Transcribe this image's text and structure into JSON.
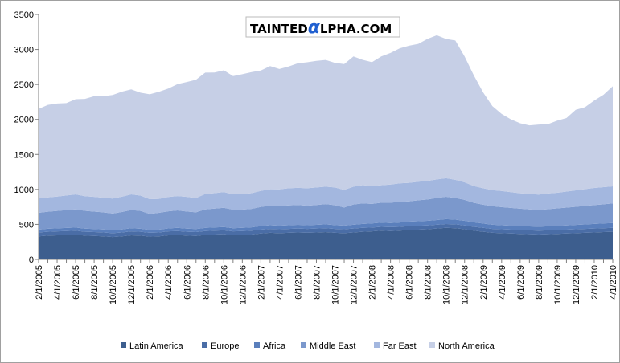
{
  "chart_data": {
    "type": "area",
    "stacked": true,
    "title": "",
    "xlabel": "",
    "ylabel": "",
    "ylim": [
      0,
      3500
    ],
    "yticks": [
      0,
      500,
      1000,
      1500,
      2000,
      2500,
      3000,
      3500
    ],
    "grid": false,
    "legend_position": "bottom",
    "x": [
      "2/1/2005",
      "3/1/2005",
      "4/1/2005",
      "5/1/2005",
      "6/1/2005",
      "7/1/2005",
      "8/1/2005",
      "9/1/2005",
      "10/1/2005",
      "11/1/2005",
      "12/1/2005",
      "1/1/2006",
      "2/1/2006",
      "3/1/2006",
      "4/1/2006",
      "5/1/2006",
      "6/1/2006",
      "7/1/2006",
      "8/1/2006",
      "9/1/2006",
      "10/1/2006",
      "11/1/2006",
      "12/1/2006",
      "1/1/2007",
      "2/1/2007",
      "3/1/2007",
      "4/1/2007",
      "5/1/2007",
      "6/1/2007",
      "7/1/2007",
      "8/1/2007",
      "9/1/2007",
      "10/1/2007",
      "11/1/2007",
      "12/1/2007",
      "1/1/2008",
      "2/1/2008",
      "3/1/2008",
      "4/1/2008",
      "5/1/2008",
      "6/1/2008",
      "7/1/2008",
      "8/1/2008",
      "9/1/2008",
      "10/1/2008",
      "11/1/2008",
      "12/1/2008",
      "1/1/2009",
      "2/1/2009",
      "3/1/2009",
      "4/1/2009",
      "5/1/2009",
      "6/1/2009",
      "7/1/2009",
      "8/1/2009",
      "9/1/2009",
      "10/1/2009",
      "11/1/2009",
      "12/1/2009",
      "1/1/2010",
      "2/1/2010",
      "3/1/2010",
      "4/1/2010"
    ],
    "xtick_labels": [
      "2/1/2005",
      "4/1/2005",
      "6/1/2005",
      "8/1/2005",
      "10/1/2005",
      "12/1/2005",
      "2/1/2006",
      "4/1/2006",
      "6/1/2006",
      "8/1/2006",
      "10/1/2006",
      "12/1/2006",
      "2/1/2007",
      "4/1/2007",
      "6/1/2007",
      "8/1/2007",
      "10/1/2007",
      "12/1/2007",
      "2/1/2008",
      "4/1/2008",
      "6/1/2008",
      "8/1/2008",
      "10/1/2008",
      "12/1/2008",
      "2/1/2009",
      "4/1/2009",
      "6/1/2009",
      "8/1/2009",
      "10/1/2009",
      "12/1/2009",
      "2/1/2010",
      "4/1/2010"
    ],
    "series": [
      {
        "name": "Latin America",
        "color": "#3d5e8e",
        "values": [
          330,
          340,
          345,
          350,
          355,
          340,
          335,
          330,
          320,
          330,
          345,
          340,
          325,
          330,
          345,
          350,
          340,
          335,
          350,
          355,
          360,
          345,
          350,
          355,
          370,
          380,
          375,
          380,
          385,
          380,
          385,
          390,
          380,
          375,
          385,
          395,
          400,
          410,
          405,
          410,
          420,
          425,
          430,
          440,
          450,
          445,
          430,
          410,
          395,
          380,
          375,
          370,
          365,
          360,
          355,
          360,
          365,
          370,
          375,
          380,
          385,
          390,
          395
        ]
      },
      {
        "name": "Europe",
        "color": "#4a6da6",
        "values": [
          55,
          55,
          55,
          55,
          55,
          55,
          55,
          55,
          55,
          55,
          55,
          55,
          55,
          55,
          55,
          55,
          55,
          55,
          55,
          55,
          55,
          55,
          55,
          55,
          55,
          55,
          55,
          55,
          55,
          55,
          55,
          55,
          55,
          55,
          55,
          55,
          55,
          55,
          55,
          55,
          55,
          55,
          55,
          55,
          55,
          55,
          55,
          55,
          55,
          55,
          55,
          55,
          55,
          55,
          55,
          55,
          55,
          55,
          55,
          55,
          55,
          55,
          55
        ]
      },
      {
        "name": "Africa",
        "color": "#5a7fbc",
        "values": [
          40,
          42,
          43,
          44,
          45,
          44,
          43,
          42,
          40,
          42,
          45,
          43,
          40,
          40,
          42,
          45,
          44,
          43,
          45,
          46,
          47,
          45,
          46,
          47,
          50,
          52,
          51,
          52,
          53,
          52,
          53,
          55,
          54,
          52,
          55,
          56,
          58,
          60,
          60,
          62,
          64,
          65,
          66,
          68,
          70,
          68,
          66,
          64,
          62,
          60,
          58,
          56,
          55,
          55,
          56,
          57,
          58,
          60,
          62,
          64,
          66,
          68,
          70
        ]
      },
      {
        "name": "Middle East",
        "color": "#7b98cc",
        "values": [
          240,
          245,
          250,
          255,
          260,
          255,
          250,
          245,
          240,
          250,
          260,
          255,
          230,
          240,
          245,
          250,
          245,
          240,
          265,
          270,
          275,
          265,
          260,
          265,
          275,
          280,
          280,
          285,
          285,
          280,
          285,
          290,
          285,
          260,
          290,
          295,
          280,
          285,
          290,
          295,
          290,
          300,
          305,
          315,
          320,
          310,
          300,
          280,
          270,
          265,
          260,
          255,
          250,
          245,
          240,
          245,
          250,
          255,
          260,
          265,
          270,
          275,
          280
        ]
      },
      {
        "name": "Far East",
        "color": "#a3b7df",
        "values": [
          205,
          205,
          205,
          210,
          215,
          210,
          210,
          210,
          215,
          220,
          225,
          220,
          210,
          200,
          205,
          205,
          210,
          205,
          220,
          220,
          225,
          220,
          220,
          225,
          230,
          235,
          240,
          245,
          245,
          250,
          250,
          250,
          255,
          250,
          255,
          260,
          255,
          250,
          260,
          265,
          265,
          265,
          265,
          265,
          265,
          260,
          250,
          240,
          235,
          230,
          230,
          225,
          220,
          220,
          220,
          225,
          225,
          230,
          235,
          240,
          245,
          245,
          245
        ]
      },
      {
        "name": "North America",
        "color": "#c6cfe6",
        "values": [
          1280,
          1320,
          1330,
          1320,
          1360,
          1390,
          1440,
          1450,
          1480,
          1500,
          1500,
          1470,
          1500,
          1530,
          1550,
          1600,
          1640,
          1690,
          1735,
          1725,
          1740,
          1690,
          1715,
          1730,
          1720,
          1760,
          1720,
          1740,
          1780,
          1800,
          1810,
          1810,
          1780,
          1800,
          1860,
          1790,
          1770,
          1840,
          1880,
          1930,
          1960,
          1970,
          2030,
          2060,
          1990,
          1990,
          1800,
          1580,
          1370,
          1200,
          1100,
          1040,
          1000,
          980,
          1000,
          990,
          1030,
          1050,
          1150,
          1170,
          1250,
          1320,
          1430
        ]
      }
    ]
  },
  "logo": {
    "pre": "TAINTED",
    "alpha": "α",
    "post": "LPHA.COM"
  }
}
